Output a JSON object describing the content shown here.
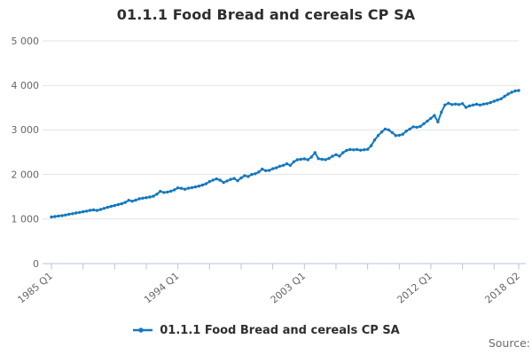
{
  "title": "01.1.1 Food Bread and cereals CP SA",
  "legend": {
    "label": "01.1.1 Food Bread and cereals CP SA",
    "marker": "line-dot-icon"
  },
  "source_label": "Source:",
  "colors": {
    "line": "#1478be",
    "grid": "#e3e3e3",
    "axis": "#b7c3d9",
    "title_text": "#2e2e2e",
    "tick_text": "#666666",
    "legend_text": "#2f2f2f",
    "source_text": "#6b6b6b",
    "background": "#ffffff"
  },
  "chart_data": {
    "type": "line",
    "title": "01.1.1 Food Bread and cereals CP SA",
    "x_unit": "quarter",
    "x_range": [
      "1985 Q1",
      "2018 Q2"
    ],
    "x_tick_labels": [
      {
        "index": 0,
        "label": "1985 Q1"
      },
      {
        "index": 36,
        "label": "1994 Q1"
      },
      {
        "index": 72,
        "label": "2003 Q1"
      },
      {
        "index": 108,
        "label": "2012 Q1"
      },
      {
        "index": 133,
        "label": "2018 Q2"
      }
    ],
    "minor_tick_indices": [
      0,
      9,
      18,
      27,
      36,
      45,
      54,
      63,
      72,
      81,
      90,
      99,
      108,
      117,
      126,
      133
    ],
    "y_ticks": [
      {
        "value": 0,
        "label": "0"
      },
      {
        "value": 1000,
        "label": "1 000"
      },
      {
        "value": 2000,
        "label": "2 000"
      },
      {
        "value": 3000,
        "label": "3 000"
      },
      {
        "value": 4000,
        "label": "4 000"
      },
      {
        "value": 5000,
        "label": "5 000"
      }
    ],
    "ylim": [
      0,
      5000
    ],
    "grid": "horizontal",
    "legend_position": "bottom",
    "marker_style": "dot",
    "series": [
      {
        "name": "01.1.1 Food Bread and cereals CP SA",
        "start": "1985 Q1",
        "frequency": "quarterly",
        "values": [
          1045,
          1055,
          1068,
          1075,
          1090,
          1108,
          1120,
          1135,
          1150,
          1163,
          1178,
          1195,
          1205,
          1193,
          1215,
          1240,
          1262,
          1285,
          1302,
          1325,
          1342,
          1372,
          1420,
          1400,
          1425,
          1455,
          1468,
          1480,
          1495,
          1512,
          1558,
          1622,
          1596,
          1606,
          1625,
          1655,
          1700,
          1690,
          1670,
          1692,
          1705,
          1722,
          1740,
          1762,
          1790,
          1840,
          1875,
          1900,
          1873,
          1820,
          1855,
          1890,
          1910,
          1860,
          1922,
          1975,
          1955,
          2000,
          2015,
          2055,
          2120,
          2085,
          2092,
          2130,
          2150,
          2185,
          2205,
          2240,
          2205,
          2285,
          2330,
          2340,
          2350,
          2330,
          2390,
          2490,
          2355,
          2340,
          2332,
          2360,
          2410,
          2445,
          2412,
          2490,
          2540,
          2560,
          2553,
          2560,
          2545,
          2555,
          2565,
          2645,
          2775,
          2875,
          2955,
          3020,
          3000,
          2940,
          2875,
          2880,
          2905,
          2975,
          3020,
          3070,
          3060,
          3080,
          3140,
          3200,
          3260,
          3325,
          3180,
          3400,
          3560,
          3600,
          3570,
          3580,
          3570,
          3590,
          3505,
          3540,
          3560,
          3575,
          3560,
          3580,
          3590,
          3615,
          3645,
          3672,
          3700,
          3755,
          3805,
          3845,
          3875,
          3885
        ]
      }
    ]
  }
}
